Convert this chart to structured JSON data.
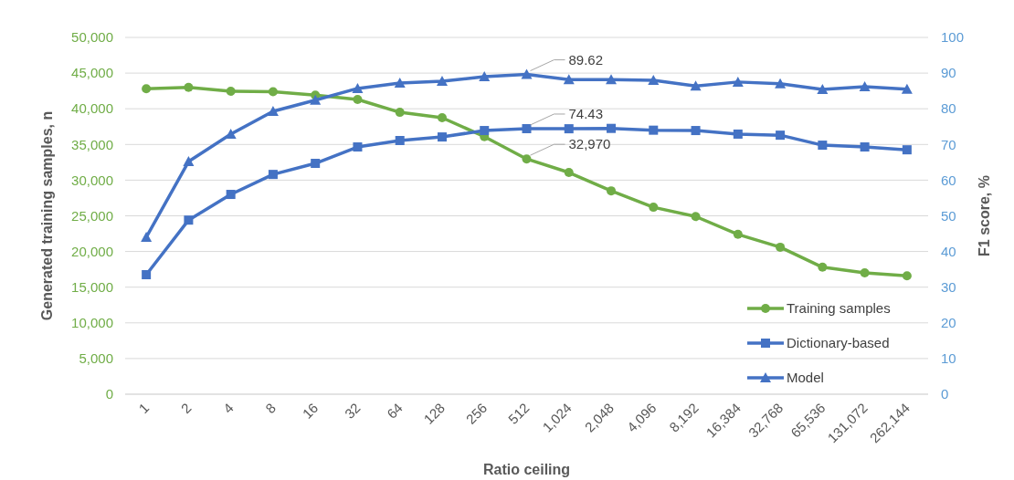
{
  "chart_data": {
    "type": "line",
    "xlabel": "Ratio ceiling",
    "ylabel": "Generated training samples, n",
    "y2label": "F1 score, %",
    "categories": [
      "1",
      "2",
      "4",
      "8",
      "16",
      "32",
      "64",
      "128",
      "256",
      "512",
      "1,024",
      "2,048",
      "4,096",
      "8,192",
      "16,384",
      "32,768",
      "65,536",
      "131,072",
      "262,144"
    ],
    "series": [
      {
        "name": "Training samples",
        "color": "#70ad47",
        "marker": "circle",
        "values": [
          42800,
          43000,
          42450,
          42400,
          41900,
          41300,
          39500,
          38750,
          36100,
          32970,
          31070,
          28500,
          26200,
          24900,
          22400,
          20600,
          17800,
          17000,
          16600
        ],
        "value_labels": [
          null,
          null,
          null,
          null,
          null,
          null,
          null,
          null,
          null,
          "32,970",
          null,
          null,
          null,
          null,
          null,
          null,
          null,
          null,
          null
        ]
      },
      {
        "name": "Dictionary-based",
        "color": "#4472c4",
        "marker": "square",
        "axis": "y2",
        "values": [
          33.5,
          48.8,
          56,
          61.6,
          64.7,
          69.3,
          71.1,
          72.1,
          73.9,
          74.43,
          74.4,
          74.5,
          74,
          73.9,
          72.9,
          72.6,
          69.8,
          69.3,
          68.5
        ],
        "value_labels": [
          null,
          null,
          null,
          null,
          null,
          null,
          null,
          null,
          null,
          "74.43",
          null,
          null,
          null,
          null,
          null,
          null,
          null,
          null,
          null
        ]
      },
      {
        "name": "Model",
        "color": "#4472c4",
        "marker": "triangle",
        "axis": "y2",
        "values": [
          44,
          65.2,
          72.9,
          79.3,
          82.4,
          85.7,
          87.2,
          87.7,
          89,
          89.62,
          88.2,
          88.2,
          88,
          86.4,
          87.5,
          87,
          85.4,
          86.2,
          85.5
        ],
        "value_labels": [
          null,
          null,
          null,
          null,
          null,
          null,
          null,
          null,
          null,
          "89.62",
          null,
          null,
          null,
          null,
          null,
          null,
          null,
          null,
          null
        ]
      }
    ],
    "ylim": [
      0,
      50000
    ],
    "yticks": [
      {
        "value": 0,
        "label": "0"
      },
      {
        "value": 5000,
        "label": "5,000"
      },
      {
        "value": 10000,
        "label": "10,000"
      },
      {
        "value": 15000,
        "label": "15,000"
      },
      {
        "value": 20000,
        "label": "20,000"
      },
      {
        "value": 25000,
        "label": "25,000"
      },
      {
        "value": 30000,
        "label": "30,000"
      },
      {
        "value": 35000,
        "label": "35,000"
      },
      {
        "value": 40000,
        "label": "40,000"
      },
      {
        "value": 45000,
        "label": "45,000"
      },
      {
        "value": 50000,
        "label": "50,000"
      }
    ],
    "y2lim": [
      0,
      100
    ],
    "y2ticks": [
      0,
      10,
      20,
      30,
      40,
      50,
      60,
      70,
      80,
      90,
      100
    ],
    "grid": "y",
    "legend": "bottom right"
  }
}
